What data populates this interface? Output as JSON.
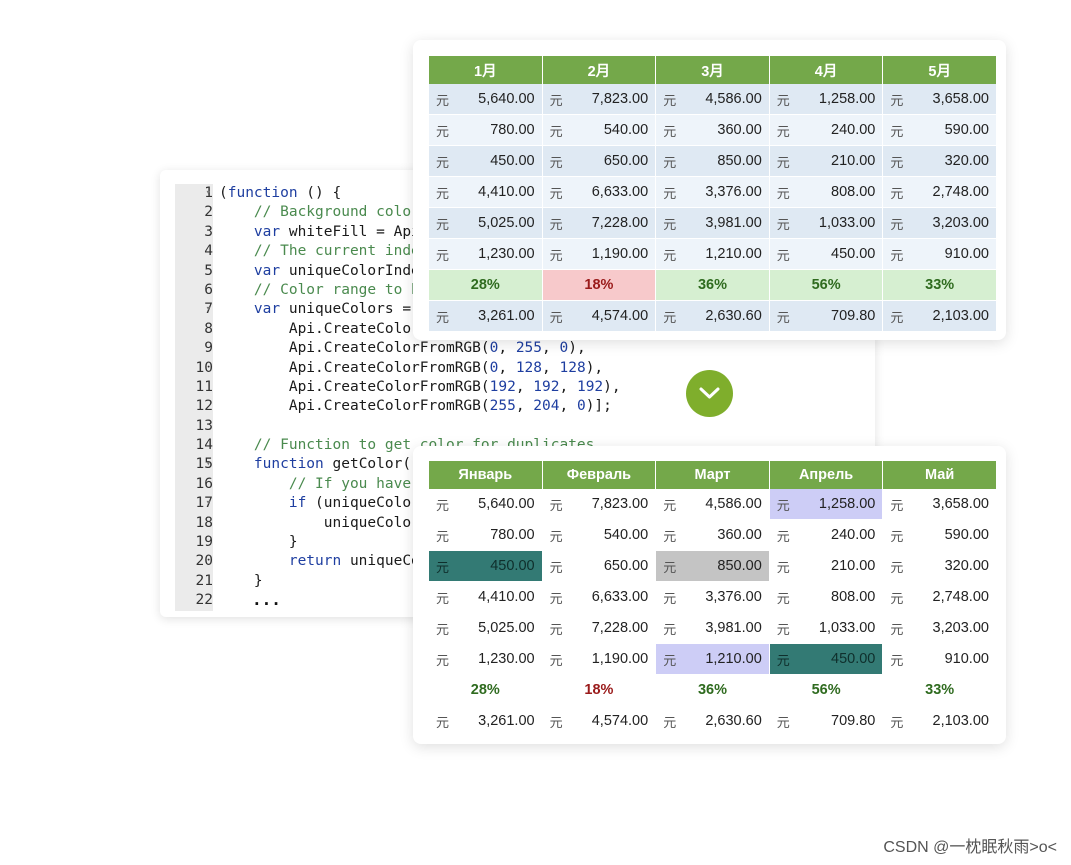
{
  "code": {
    "lines": [
      {
        "n": "1",
        "fold": true,
        "parts": [
          [
            "t",
            "(function () {",
            "kw0"
          ]
        ]
      },
      {
        "n": "2",
        "fold": false,
        "parts": [
          [
            "cm",
            "    // Background color"
          ]
        ]
      },
      {
        "n": "3",
        "fold": false,
        "parts": [
          [
            "kw",
            "    var "
          ],
          [
            "t",
            "whiteFill = Api."
          ]
        ]
      },
      {
        "n": "4",
        "fold": false,
        "parts": [
          [
            "cm",
            "    // The current inde"
          ]
        ]
      },
      {
        "n": "5",
        "fold": false,
        "parts": [
          [
            "kw",
            "    var "
          ],
          [
            "t",
            "uniqueColorInde"
          ]
        ]
      },
      {
        "n": "6",
        "fold": false,
        "parts": [
          [
            "cm",
            "    // Color range to h"
          ]
        ]
      },
      {
        "n": "7",
        "fold": true,
        "parts": [
          [
            "kw",
            "    var "
          ],
          [
            "t",
            "uniqueColors = "
          ]
        ]
      },
      {
        "n": "8",
        "fold": false,
        "parts": [
          [
            "t",
            "        Api.CreateColor"
          ]
        ]
      },
      {
        "n": "9",
        "fold": false,
        "parts": [
          [
            "t",
            "        Api.CreateColorFromRGB("
          ],
          [
            "nm",
            "0"
          ],
          [
            "t",
            ", "
          ],
          [
            "nm",
            "255"
          ],
          [
            "t",
            ", "
          ],
          [
            "nm",
            "0"
          ],
          [
            "t",
            "),"
          ]
        ]
      },
      {
        "n": "10",
        "fold": false,
        "parts": [
          [
            "t",
            "        Api.CreateColorFromRGB("
          ],
          [
            "nm",
            "0"
          ],
          [
            "t",
            ", "
          ],
          [
            "nm",
            "128"
          ],
          [
            "t",
            ", "
          ],
          [
            "nm",
            "128"
          ],
          [
            "t",
            "),"
          ]
        ]
      },
      {
        "n": "11",
        "fold": false,
        "parts": [
          [
            "t",
            "        Api.CreateColorFromRGB("
          ],
          [
            "nm",
            "192"
          ],
          [
            "t",
            ", "
          ],
          [
            "nm",
            "192"
          ],
          [
            "t",
            ", "
          ],
          [
            "nm",
            "192"
          ],
          [
            "t",
            "),"
          ]
        ]
      },
      {
        "n": "12",
        "fold": false,
        "parts": [
          [
            "t",
            "        Api.CreateColorFromRGB("
          ],
          [
            "nm",
            "255"
          ],
          [
            "t",
            ", "
          ],
          [
            "nm",
            "204"
          ],
          [
            "t",
            ", "
          ],
          [
            "nm",
            "0"
          ],
          [
            "t",
            ")];"
          ]
        ]
      },
      {
        "n": "13",
        "fold": false,
        "parts": []
      },
      {
        "n": "14",
        "fold": false,
        "parts": [
          [
            "cm",
            "    // Function to get color for duplicates"
          ]
        ]
      },
      {
        "n": "15",
        "fold": true,
        "parts": [
          [
            "kw",
            "    function "
          ],
          [
            "t",
            "getColor()"
          ]
        ]
      },
      {
        "n": "16",
        "fold": false,
        "parts": [
          [
            "cm",
            "        // If you have"
          ]
        ]
      },
      {
        "n": "17",
        "fold": true,
        "parts": [
          [
            "kw",
            "        if "
          ],
          [
            "t",
            "(uniqueColor"
          ]
        ]
      },
      {
        "n": "18",
        "fold": false,
        "parts": [
          [
            "t",
            "            uniqueColor"
          ]
        ]
      },
      {
        "n": "19",
        "fold": false,
        "parts": [
          [
            "t",
            "        }"
          ]
        ]
      },
      {
        "n": "20",
        "fold": false,
        "parts": [
          [
            "kw",
            "        return "
          ],
          [
            "t",
            "uniqueCo"
          ]
        ]
      },
      {
        "n": "21",
        "fold": false,
        "parts": [
          [
            "t",
            "    }"
          ]
        ]
      },
      {
        "n": "22",
        "fold": false,
        "parts": []
      }
    ],
    "ellipsis": "..."
  },
  "top_table": {
    "headers": [
      "1月",
      "2月",
      "3月",
      "4月",
      "5月"
    ],
    "currency": "元",
    "rows": [
      [
        "5,640.00",
        "7,823.00",
        "4,586.00",
        "1,258.00",
        "3,658.00"
      ],
      [
        "780.00",
        "540.00",
        "360.00",
        "240.00",
        "590.00"
      ],
      [
        "450.00",
        "650.00",
        "850.00",
        "210.00",
        "320.00"
      ],
      [
        "4,410.00",
        "6,633.00",
        "3,376.00",
        "808.00",
        "2,748.00"
      ],
      [
        "5,025.00",
        "7,228.00",
        "3,981.00",
        "1,033.00",
        "3,203.00"
      ],
      [
        "1,230.00",
        "1,190.00",
        "1,210.00",
        "450.00",
        "910.00"
      ]
    ],
    "percents": [
      "28%",
      "18%",
      "36%",
      "56%",
      "33%"
    ],
    "totals": [
      "3,261.00",
      "4,574.00",
      "2,630.60",
      "709.80",
      "2,103.00"
    ]
  },
  "bottom_table": {
    "headers": [
      "Январь",
      "Февраль",
      "Март",
      "Апрель",
      "Май"
    ],
    "currency": "元",
    "rows": [
      [
        "5,640.00",
        "7,823.00",
        "4,586.00",
        "1,258.00",
        "3,658.00"
      ],
      [
        "780.00",
        "540.00",
        "360.00",
        "240.00",
        "590.00"
      ],
      [
        "450.00",
        "650.00",
        "850.00",
        "210.00",
        "320.00"
      ],
      [
        "4,410.00",
        "6,633.00",
        "3,376.00",
        "808.00",
        "2,748.00"
      ],
      [
        "5,025.00",
        "7,228.00",
        "3,981.00",
        "1,033.00",
        "3,203.00"
      ],
      [
        "1,230.00",
        "1,190.00",
        "1,210.00",
        "450.00",
        "910.00"
      ]
    ],
    "highlights": {
      "0-3": "lav",
      "2-0": "teal",
      "2-2": "gray",
      "5-2": "lav",
      "5-3": "teal"
    },
    "percents": [
      "28%",
      "18%",
      "36%",
      "56%",
      "33%"
    ],
    "totals": [
      "3,261.00",
      "4,574.00",
      "2,630.60",
      "709.80",
      "2,103.00"
    ]
  },
  "arrow_button": {
    "icon": "chevron-down-icon"
  },
  "watermark": "CSDN @一枕眠秋雨>o<",
  "colors": {
    "header_green": "#74a84a",
    "button_green": "#7fae2c",
    "teal": "#337a74",
    "gray": "#c4c4c4",
    "lavender": "#cdcdf6",
    "red_pct": "#f7c9cb",
    "green_pct": "#d6efd1"
  }
}
